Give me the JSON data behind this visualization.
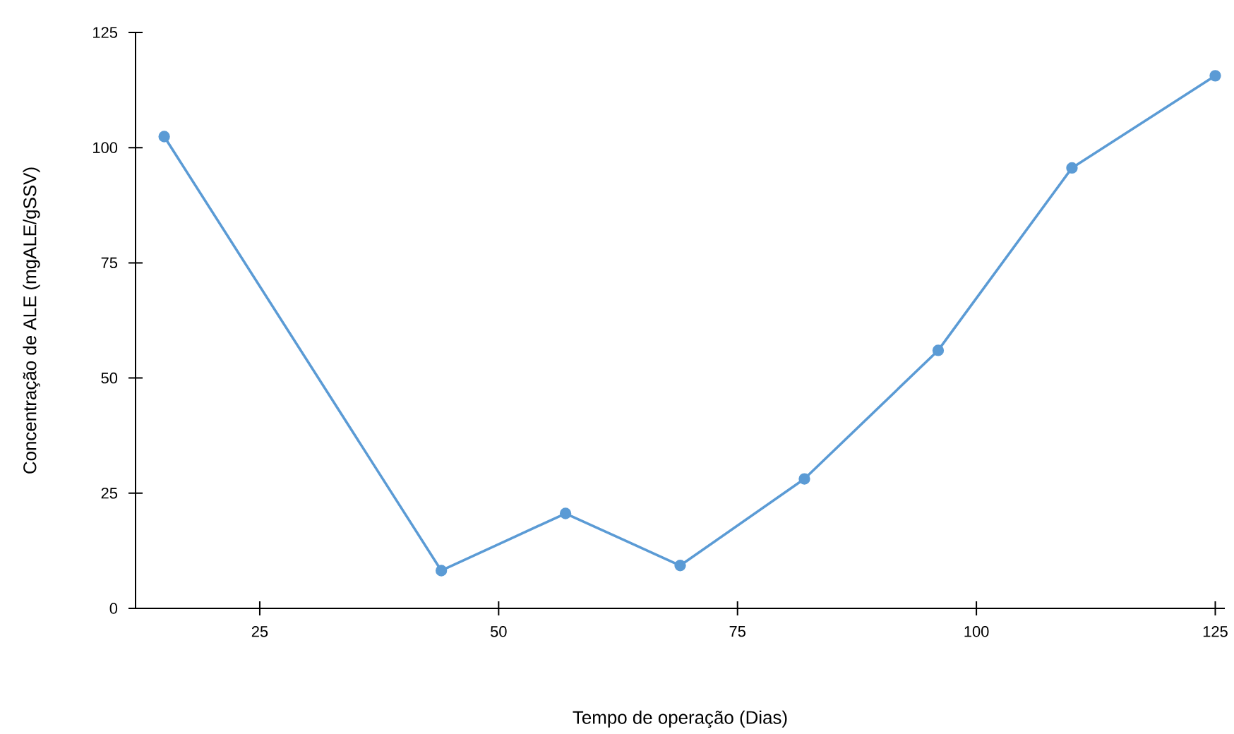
{
  "chart_data": {
    "type": "line",
    "xlabel": "Tempo de operação (Dias)",
    "ylabel": "Concentração de ALE (mgALE/gSSV)",
    "x": [
      15,
      44,
      57,
      69,
      82,
      96,
      110,
      125
    ],
    "series": [
      {
        "color": "#5b9bd5",
        "values": [
          102.4,
          8.2,
          20.6,
          9.3,
          28.1,
          56.0,
          95.6,
          115.6
        ]
      }
    ],
    "xlim": [
      12,
      126
    ],
    "ylim": [
      0,
      125
    ],
    "xticks": [
      25,
      50,
      75,
      100,
      125
    ],
    "yticks": [
      0,
      25,
      50,
      75,
      100,
      125
    ],
    "grid": false,
    "marker": "circle",
    "line_style": "solid"
  }
}
